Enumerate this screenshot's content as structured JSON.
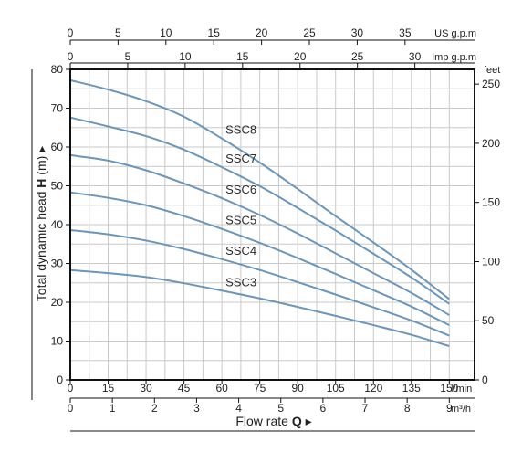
{
  "chart_data": {
    "type": "line",
    "x": [
      0,
      15,
      30,
      45,
      60,
      75,
      90,
      105,
      120,
      135,
      150
    ],
    "xlim": [
      0,
      160
    ],
    "ylim": [
      0,
      80
    ],
    "grid": true,
    "series": [
      {
        "name": "SSC8",
        "values": [
          77.2,
          74.8,
          71.8,
          67.8,
          62.2,
          56.0,
          49.2,
          42.2,
          35.4,
          28.4,
          20.8
        ]
      },
      {
        "name": "SSC7",
        "values": [
          67.6,
          65.3,
          62.8,
          59.3,
          54.8,
          49.9,
          44.3,
          38.5,
          32.5,
          26.4,
          19.6
        ]
      },
      {
        "name": "SSC6",
        "values": [
          57.9,
          56.5,
          54.0,
          50.6,
          46.8,
          42.5,
          37.7,
          32.6,
          27.5,
          22.4,
          16.7
        ]
      },
      {
        "name": "SSC5",
        "values": [
          48.3,
          46.9,
          45.0,
          42.2,
          38.9,
          35.3,
          31.4,
          27.3,
          23.1,
          18.9,
          14.1
        ]
      },
      {
        "name": "SSC4",
        "values": [
          38.6,
          37.5,
          35.9,
          33.7,
          31.1,
          28.3,
          25.2,
          22.0,
          18.7,
          15.3,
          11.4
        ]
      },
      {
        "name": "SSC3",
        "values": [
          28.3,
          27.5,
          26.5,
          24.9,
          23.0,
          21.0,
          18.8,
          16.5,
          14.1,
          11.6,
          8.7
        ]
      }
    ],
    "xaxis_bottom": {
      "ticks": [
        "0",
        "15",
        "30",
        "45",
        "60",
        "75",
        "90",
        "105",
        "120",
        "135",
        "150"
      ],
      "unit": "l/min"
    },
    "xaxis_bottom2": {
      "ticks": [
        "0",
        "1",
        "2",
        "3",
        "4",
        "5",
        "6",
        "7",
        "8",
        "9"
      ],
      "unit": "m³/h"
    },
    "xaxis_top_us": {
      "ticks": [
        "0",
        "5",
        "10",
        "15",
        "20",
        "25",
        "30",
        "35"
      ],
      "unit": "US g.p.m"
    },
    "xaxis_top_imp": {
      "ticks": [
        "0",
        "5",
        "10",
        "15",
        "20",
        "25",
        "30"
      ],
      "unit": "Imp g.p.m"
    },
    "yaxis_left": {
      "ticks": [
        "0",
        "10",
        "20",
        "30",
        "40",
        "50",
        "60",
        "70",
        "80"
      ],
      "label_pre": "Total dynamic head ",
      "label_bold": "H",
      "label_post": " (m) ▸"
    },
    "yaxis_right": {
      "ticks": [
        "0",
        "50",
        "100",
        "150",
        "200",
        "250"
      ],
      "unit": "feet"
    },
    "xlabel_pre": "Flow rate ",
    "xlabel_bold": "Q",
    "xlabel_post": " ▸",
    "colors": {
      "curve": "#6b96ba",
      "grid": "#c9c9c9",
      "frame": "#111111"
    }
  }
}
